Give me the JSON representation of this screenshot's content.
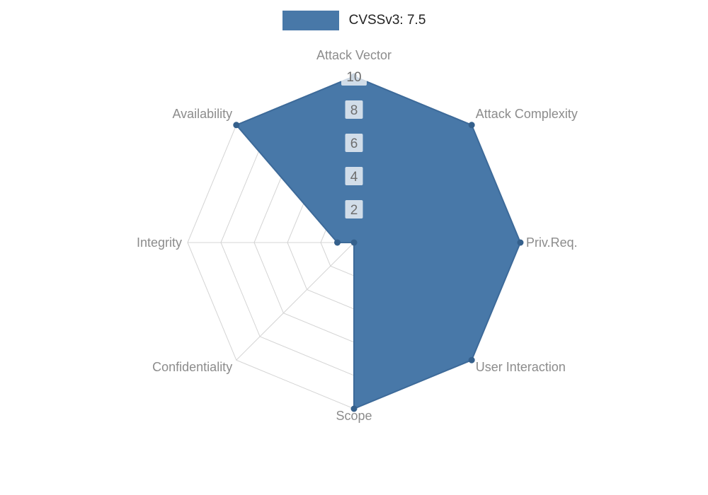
{
  "legend": {
    "label": "CVSSv3: 7.5"
  },
  "chart_data": {
    "type": "radar",
    "title": "CVSSv3: 7.5",
    "categories": [
      "Attack Vector",
      "Attack Complexity",
      "Priv.Req.",
      "User Interaction",
      "Scope",
      "Confidentiality",
      "Integrity",
      "Availability"
    ],
    "series": [
      {
        "name": "CVSSv3: 7.5",
        "values": [
          10,
          10,
          10,
          10,
          10,
          0,
          1,
          10
        ]
      }
    ],
    "ticks": [
      2,
      4,
      6,
      8,
      10
    ],
    "max": 10,
    "grid": true,
    "legend_position": "top"
  },
  "colors": {
    "series_fill": "#4878a8",
    "series_stroke": "#3d6a99",
    "point_marker": "#35608c",
    "grid": "#d4d4d4",
    "axis_label": "#8c8c8c",
    "tick_label": "#6e6e6e",
    "tick_backdrop": "rgba(255,255,255,0.75)",
    "legend_text": "#222222",
    "background": "#ffffff"
  }
}
